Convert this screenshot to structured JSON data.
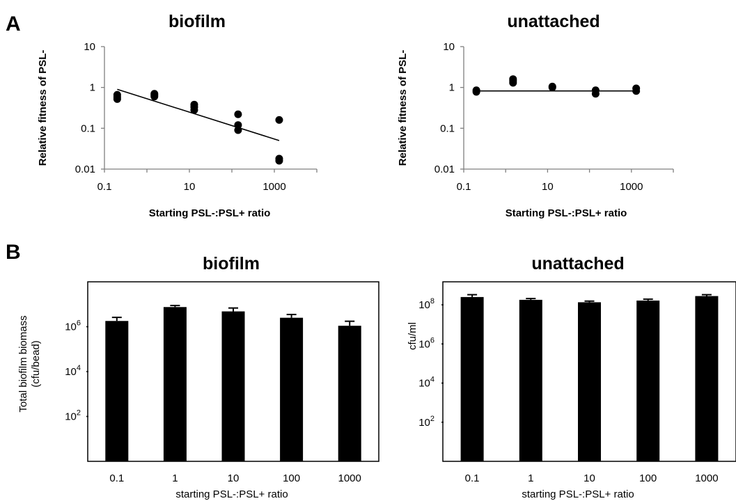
{
  "panel_labels": [
    "A",
    "B"
  ],
  "chart_data": [
    {
      "type": "scatter",
      "title": "biofilm",
      "xlabel": "Starting PSL-:PSL+ ratio",
      "ylabel": "Relative fitness of PSL-",
      "x_scale": "log",
      "y_scale": "log",
      "xlim": [
        0.1,
        10000
      ],
      "ylim": [
        0.01,
        10
      ],
      "x_ticks": [
        "0.1",
        "10",
        "1000"
      ],
      "y_ticks": [
        "0.01",
        "0.1",
        "1",
        "10"
      ],
      "points": [
        {
          "x": 0.2,
          "y": 0.52
        },
        {
          "x": 0.2,
          "y": 0.58
        },
        {
          "x": 0.2,
          "y": 0.66
        },
        {
          "x": 1.5,
          "y": 0.6
        },
        {
          "x": 1.5,
          "y": 0.65
        },
        {
          "x": 1.5,
          "y": 0.7
        },
        {
          "x": 13,
          "y": 0.28
        },
        {
          "x": 13,
          "y": 0.33
        },
        {
          "x": 13,
          "y": 0.38
        },
        {
          "x": 140,
          "y": 0.09
        },
        {
          "x": 140,
          "y": 0.12
        },
        {
          "x": 140,
          "y": 0.22
        },
        {
          "x": 1300,
          "y": 0.016
        },
        {
          "x": 1300,
          "y": 0.018
        },
        {
          "x": 1300,
          "y": 0.16
        }
      ],
      "trendline": [
        {
          "x": 0.2,
          "y": 0.9
        },
        {
          "x": 1300,
          "y": 0.05
        }
      ]
    },
    {
      "type": "scatter",
      "title": "unattached",
      "xlabel": "Starting PSL-:PSL+ ratio",
      "ylabel": "Relative fitness of PSL-",
      "x_scale": "log",
      "y_scale": "log",
      "xlim": [
        0.1,
        10000
      ],
      "ylim": [
        0.01,
        10
      ],
      "x_ticks": [
        "0.1",
        "10",
        "1000"
      ],
      "y_ticks": [
        "0.01",
        "0.1",
        "1",
        "10"
      ],
      "points": [
        {
          "x": 0.2,
          "y": 0.78
        },
        {
          "x": 0.2,
          "y": 0.85
        },
        {
          "x": 1.5,
          "y": 1.3
        },
        {
          "x": 1.5,
          "y": 1.45
        },
        {
          "x": 1.5,
          "y": 1.6
        },
        {
          "x": 13,
          "y": 1.0
        },
        {
          "x": 13,
          "y": 1.05
        },
        {
          "x": 140,
          "y": 0.7
        },
        {
          "x": 140,
          "y": 0.85
        },
        {
          "x": 1300,
          "y": 0.82
        },
        {
          "x": 1300,
          "y": 0.95
        }
      ],
      "trendline": [
        {
          "x": 0.2,
          "y": 0.82
        },
        {
          "x": 1300,
          "y": 0.82
        }
      ]
    },
    {
      "type": "bar",
      "title": "biofilm",
      "xlabel": "starting PSL-:PSL+ ratio",
      "ylabel_lines": [
        "Total biofilm biomass",
        "(cfu/bead)"
      ],
      "y_scale": "log",
      "ylim": [
        1,
        100000000
      ],
      "y_ticks": [
        {
          "base": "10",
          "exp": "2",
          "value": 100
        },
        {
          "base": "10",
          "exp": "4",
          "value": 10000
        },
        {
          "base": "10",
          "exp": "6",
          "value": 1000000
        }
      ],
      "categories": [
        "0.1",
        "1",
        "10",
        "100",
        "1000"
      ],
      "values": [
        1800000,
        7500000,
        4800000,
        2500000,
        1100000
      ],
      "errors_upper": [
        2600000,
        8800000,
        6800000,
        3500000,
        1750000
      ]
    },
    {
      "type": "bar",
      "title": "unattached",
      "xlabel": "starting PSL-:PSL+ ratio",
      "ylabel": "cfu/ml",
      "y_scale": "log",
      "ylim": [
        1,
        1500000000
      ],
      "y_ticks": [
        {
          "base": "10",
          "exp": "2",
          "value": 100
        },
        {
          "base": "10",
          "exp": "4",
          "value": 10000
        },
        {
          "base": "10",
          "exp": "6",
          "value": 1000000
        },
        {
          "base": "10",
          "exp": "8",
          "value": 100000000
        }
      ],
      "categories": [
        "0.1",
        "1",
        "10",
        "100",
        "1000"
      ],
      "values": [
        250000000,
        180000000,
        135000000,
        165000000,
        280000000
      ],
      "errors_upper": [
        330000000,
        210000000,
        155000000,
        195000000,
        330000000
      ]
    }
  ]
}
